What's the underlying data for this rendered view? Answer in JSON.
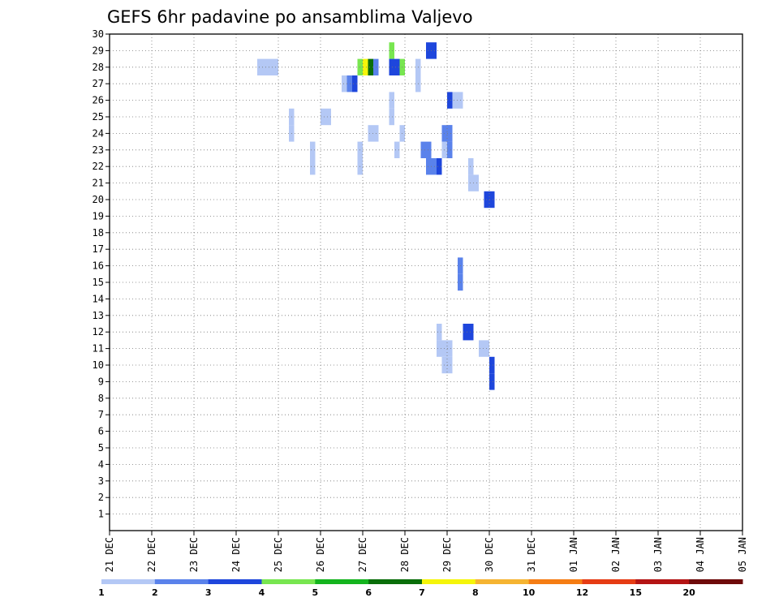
{
  "chart_data": {
    "type": "heatmap",
    "title": "GEFS 6hr padavine po ansamblima Valjevo",
    "xlabel": "",
    "ylabel": "",
    "x_tick_labels": [
      "21 DEC",
      "22 DEC",
      "23 DEC",
      "24 DEC",
      "25 DEC",
      "26 DEC",
      "27 DEC",
      "28 DEC",
      "29 DEC",
      "30 DEC",
      "31 DEC",
      "01 JAN",
      "02 JAN",
      "03 JAN",
      "04 JAN",
      "05 JAN"
    ],
    "x_steps_per_day": 4,
    "x_range_steps": [
      0,
      60
    ],
    "y_tick_labels": [
      "1",
      "2",
      "3",
      "4",
      "5",
      "6",
      "7",
      "8",
      "9",
      "10",
      "11",
      "12",
      "13",
      "14",
      "15",
      "16",
      "17",
      "18",
      "19",
      "20",
      "21",
      "22",
      "23",
      "24",
      "25",
      "26",
      "27",
      "28",
      "29",
      "30"
    ],
    "y_range": [
      0,
      30
    ],
    "grid": true,
    "colorbar": {
      "labels": [
        "1",
        "2",
        "3",
        "4",
        "5",
        "6",
        "7",
        "8",
        "10",
        "12",
        "15",
        "20"
      ],
      "colors": [
        "#b4c8f5",
        "#5a82eb",
        "#1e46dc",
        "#78e650",
        "#14b41e",
        "#0a6e0a",
        "#f5f50a",
        "#f5b432",
        "#f57d14",
        "#e63c14",
        "#b41414",
        "#6e0a0a"
      ]
    },
    "cells": [
      [
        61,
        29,
        2
      ],
      [
        60,
        29,
        2
      ],
      [
        58,
        28,
        0
      ],
      [
        58,
        27,
        0
      ],
      [
        53,
        26,
        0
      ],
      [
        53,
        25,
        0
      ],
      [
        64,
        24,
        1
      ],
      [
        64,
        23,
        1
      ],
      [
        59,
        23,
        1
      ],
      [
        60,
        23,
        1
      ],
      [
        60,
        22,
        1
      ],
      [
        61,
        22,
        1
      ],
      [
        62,
        22,
        2
      ],
      [
        63,
        23,
        0
      ],
      [
        54,
        23,
        0
      ],
      [
        55,
        24,
        0
      ],
      [
        49,
        24,
        0
      ],
      [
        50,
        24,
        0
      ],
      [
        53,
        29,
        3
      ],
      [
        53,
        28,
        2
      ],
      [
        54,
        28,
        2
      ],
      [
        55,
        28,
        3
      ],
      [
        28,
        28,
        0
      ],
      [
        29,
        28,
        0
      ],
      [
        30,
        28,
        0
      ],
      [
        31,
        28,
        0
      ],
      [
        47,
        28,
        3
      ],
      [
        48,
        28,
        6
      ],
      [
        49,
        28,
        5
      ],
      [
        50,
        28,
        1
      ],
      [
        46,
        27,
        2
      ],
      [
        45,
        27,
        1
      ],
      [
        44,
        27,
        0
      ],
      [
        64,
        26,
        2
      ],
      [
        65,
        26,
        0
      ],
      [
        66,
        26,
        0
      ],
      [
        34,
        25,
        0
      ],
      [
        34,
        24,
        0
      ],
      [
        40,
        25,
        0
      ],
      [
        41,
        25,
        0
      ],
      [
        63,
        24,
        1
      ],
      [
        64,
        24,
        1
      ],
      [
        38,
        23,
        0
      ],
      [
        38,
        22,
        0
      ],
      [
        47,
        22,
        0
      ],
      [
        47,
        23,
        0
      ],
      [
        68,
        22,
        0
      ],
      [
        68,
        21,
        0
      ],
      [
        69,
        21,
        0
      ],
      [
        71,
        20,
        2
      ],
      [
        72,
        20,
        2
      ],
      [
        66,
        16,
        1
      ],
      [
        66,
        15,
        1
      ],
      [
        62,
        12,
        0
      ],
      [
        62,
        11,
        0
      ],
      [
        63,
        11,
        0
      ],
      [
        64,
        11,
        0
      ],
      [
        63,
        10,
        0
      ],
      [
        64,
        10,
        0
      ],
      [
        67,
        12,
        2
      ],
      [
        68,
        12,
        2
      ],
      [
        70,
        11,
        0
      ],
      [
        71,
        11,
        0
      ],
      [
        72,
        10,
        2
      ],
      [
        72,
        9,
        2
      ]
    ],
    "cells_note": ""
  }
}
